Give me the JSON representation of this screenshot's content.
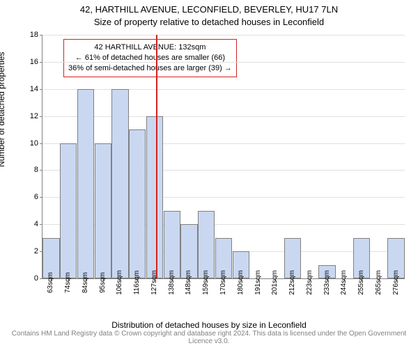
{
  "title_line1": "42, HARTHILL AVENUE, LECONFIELD, BEVERLEY, HU17 7LN",
  "title_line2": "Size of property relative to detached houses in Leconfield",
  "y_label": "Number of detached properties",
  "x_label": "Distribution of detached houses by size in Leconfield",
  "footer": "Contains HM Land Registry data © Crown copyright and database right 2024. This data is licensed under the Open Government Licence v3.0.",
  "chart": {
    "type": "histogram",
    "background_color": "#ffffff",
    "grid_color": "#e0e0e0",
    "axis_color": "#808080",
    "bar_fill": "#c9d8f0",
    "bar_border": "#808080",
    "marker_color": "#d62020",
    "ylim": [
      0,
      18
    ],
    "y_ticks": [
      0,
      2,
      4,
      6,
      8,
      10,
      12,
      14,
      16,
      18
    ],
    "x_ticks": [
      "63sqm",
      "74sqm",
      "84sqm",
      "95sqm",
      "106sqm",
      "116sqm",
      "127sqm",
      "138sqm",
      "148sqm",
      "159sqm",
      "170sqm",
      "180sqm",
      "191sqm",
      "201sqm",
      "212sqm",
      "223sqm",
      "233sqm",
      "244sqm",
      "255sqm",
      "265sqm",
      "276sqm"
    ],
    "values": [
      3,
      10,
      14,
      10,
      14,
      11,
      12,
      5,
      4,
      5,
      3,
      2,
      0,
      0,
      3,
      0,
      1,
      0,
      3,
      0,
      3
    ],
    "marker_index": 6.6
  },
  "info_box": {
    "line1": "42 HARTHILL AVENUE: 132sqm",
    "line2": "← 61% of detached houses are smaller (66)",
    "line3": "36% of semi-detached houses are larger (39) →"
  }
}
